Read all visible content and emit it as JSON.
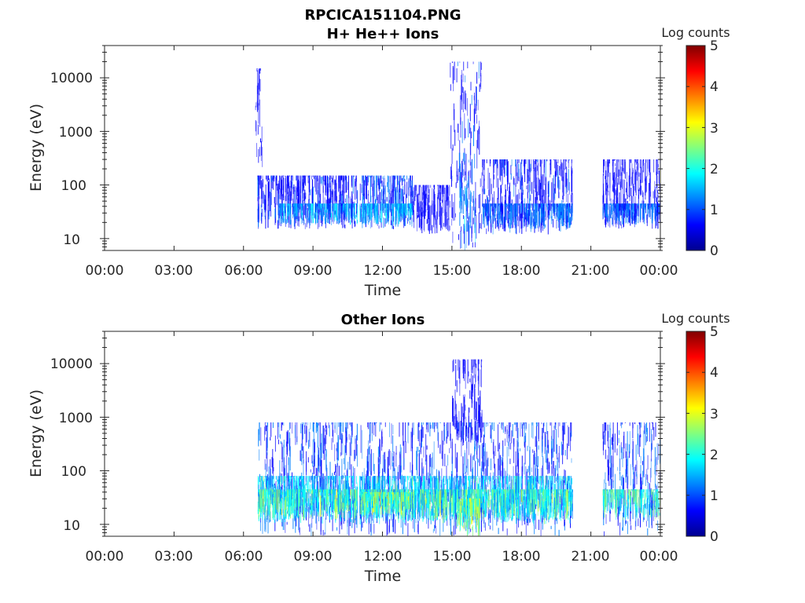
{
  "figure": {
    "file_title": "RPCICA151104.PNG"
  },
  "colormap": [
    "#00008f",
    "#0000ff",
    "#0080ff",
    "#00ffff",
    "#80ff80",
    "#ffff00",
    "#ff8000",
    "#ff0000",
    "#800000"
  ],
  "chart_data": [
    {
      "type": "heatmap",
      "title": "H+ He++ Ions",
      "xlabel": "Time",
      "ylabel": "Energy (eV)",
      "yscale": "log",
      "xlim": [
        "00:00",
        "00:00"
      ],
      "ylim": [
        6,
        40000
      ],
      "xticks": [
        "00:00",
        "03:00",
        "06:00",
        "09:00",
        "12:00",
        "15:00",
        "18:00",
        "21:00",
        "00:00"
      ],
      "yticks": [
        "10",
        "100",
        "1000",
        "10000"
      ],
      "colorbar": {
        "label": "Log counts",
        "ticks": [
          "0",
          "1",
          "2",
          "3",
          "4",
          "5"
        ],
        "range": [
          0,
          5
        ]
      },
      "data_intervals_hours": [
        [
          6.6,
          20.2
        ],
        [
          21.5,
          24.0
        ]
      ],
      "gap_hours": [
        10.9,
        11.0
      ],
      "regions": [
        {
          "t": [
            6.6,
            11.0
          ],
          "e": [
            15,
            150
          ],
          "level": 0.8
        },
        {
          "t": [
            7.5,
            11.0
          ],
          "e": [
            18,
            45
          ],
          "level": 1.5
        },
        {
          "t": [
            11.0,
            13.3
          ],
          "e": [
            15,
            150
          ],
          "level": 1.0
        },
        {
          "t": [
            11.0,
            13.3
          ],
          "e": [
            18,
            45
          ],
          "level": 1.6
        },
        {
          "t": [
            13.3,
            14.9
          ],
          "e": [
            12,
            100
          ],
          "level": 0.7
        },
        {
          "t": [
            14.9,
            16.3
          ],
          "e": [
            8,
            20000
          ],
          "level": 0.8
        },
        {
          "t": [
            15.3,
            16.0
          ],
          "e": [
            6,
            400
          ],
          "level": 1.3
        },
        {
          "t": [
            16.3,
            20.2
          ],
          "e": [
            12,
            300
          ],
          "level": 0.8
        },
        {
          "t": [
            16.3,
            20.2
          ],
          "e": [
            15,
            45
          ],
          "level": 1.2
        },
        {
          "t": [
            21.5,
            24.0
          ],
          "e": [
            15,
            300
          ],
          "level": 0.7
        },
        {
          "t": [
            21.5,
            24.0
          ],
          "e": [
            18,
            45
          ],
          "level": 1.2
        },
        {
          "t": [
            6.5,
            6.8
          ],
          "e": [
            200,
            15000
          ],
          "level": 0.5
        }
      ]
    },
    {
      "type": "heatmap",
      "title": "Other Ions",
      "xlabel": "Time",
      "ylabel": "Energy (eV)",
      "yscale": "log",
      "xlim": [
        "00:00",
        "00:00"
      ],
      "ylim": [
        6,
        40000
      ],
      "xticks": [
        "00:00",
        "03:00",
        "06:00",
        "09:00",
        "12:00",
        "15:00",
        "18:00",
        "21:00",
        "00:00"
      ],
      "yticks": [
        "10",
        "100",
        "1000",
        "10000"
      ],
      "colorbar": {
        "label": "Log counts",
        "ticks": [
          "0",
          "1",
          "2",
          "3",
          "4",
          "5"
        ],
        "range": [
          0,
          5
        ]
      },
      "data_intervals_hours": [
        [
          6.6,
          20.2
        ],
        [
          21.5,
          24.0
        ]
      ],
      "gap_hours": [
        10.9,
        11.0
      ],
      "regions": [
        {
          "t": [
            6.6,
            20.2
          ],
          "e": [
            6,
            800
          ],
          "level": 1.0
        },
        {
          "t": [
            6.6,
            20.2
          ],
          "e": [
            10,
            80
          ],
          "level": 1.8
        },
        {
          "t": [
            6.6,
            20.2
          ],
          "e": [
            12,
            45
          ],
          "level": 2.3
        },
        {
          "t": [
            11.0,
            13.3
          ],
          "e": [
            15,
            40
          ],
          "level": 2.6
        },
        {
          "t": [
            15.2,
            16.2
          ],
          "e": [
            6,
            30
          ],
          "level": 2.8
        },
        {
          "t": [
            15.0,
            16.3
          ],
          "e": [
            300,
            12000
          ],
          "level": 0.6
        },
        {
          "t": [
            21.5,
            24.0
          ],
          "e": [
            6,
            800
          ],
          "level": 1.0
        },
        {
          "t": [
            21.5,
            24.0
          ],
          "e": [
            12,
            45
          ],
          "level": 2.2
        }
      ]
    }
  ]
}
